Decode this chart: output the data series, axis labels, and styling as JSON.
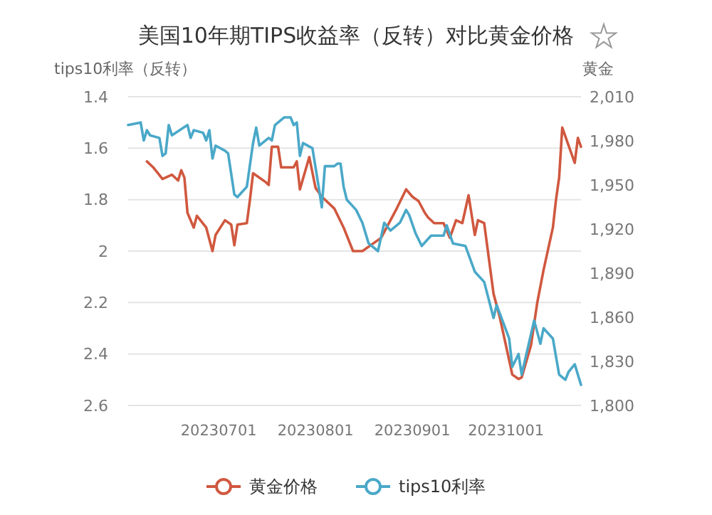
{
  "chart_data": {
    "type": "line",
    "title": "美国10年期TIPS收益率（反转）对比黄金价格",
    "ylabel": "tips10利率（反转）",
    "y2label": "黄金",
    "xlim": [
      "2023-06-02",
      "2023-10-25"
    ],
    "xticks": [
      {
        "value": "2023-07-01",
        "label": "20230701"
      },
      {
        "value": "2023-08-01",
        "label": "20230801"
      },
      {
        "value": "2023-09-01",
        "label": "20230901"
      },
      {
        "value": "2023-10-01",
        "label": "20231001"
      }
    ],
    "ylim": [
      2.6,
      1.4
    ],
    "yticks": [
      1.4,
      1.6,
      1.8,
      2,
      2.2,
      2.4,
      2.6
    ],
    "y2lim": [
      1800,
      2010
    ],
    "y2ticks": [
      {
        "value": 1800,
        "label": "1,800"
      },
      {
        "value": 1830,
        "label": "1,830"
      },
      {
        "value": 1860,
        "label": "1,860"
      },
      {
        "value": 1890,
        "label": "1,890"
      },
      {
        "value": 1920,
        "label": "1,920"
      },
      {
        "value": 1950,
        "label": "1,950"
      },
      {
        "value": 1980,
        "label": "1,980"
      },
      {
        "value": 2010,
        "label": "2,010"
      }
    ],
    "grid": "y",
    "legend": "bottom",
    "series": [
      {
        "name": "黄金价格",
        "color": "#d0583f",
        "axis": "y2",
        "x": [
          "2023-06-08",
          "2023-06-10",
          "2023-06-13",
          "2023-06-16",
          "2023-06-18",
          "2023-06-19",
          "2023-06-20",
          "2023-06-21",
          "2023-06-23",
          "2023-06-24",
          "2023-06-27",
          "2023-06-29",
          "2023-06-30",
          "2023-07-03",
          "2023-07-05",
          "2023-07-06",
          "2023-07-07",
          "2023-07-10",
          "2023-07-11",
          "2023-07-12",
          "2023-07-16",
          "2023-07-17",
          "2023-07-18",
          "2023-07-20",
          "2023-07-21",
          "2023-07-25",
          "2023-07-26",
          "2023-07-27",
          "2023-07-30",
          "2023-08-01",
          "2023-08-03",
          "2023-08-07",
          "2023-08-10",
          "2023-08-13",
          "2023-08-16",
          "2023-08-22",
          "2023-08-27",
          "2023-08-30",
          "2023-09-01",
          "2023-09-03",
          "2023-09-05",
          "2023-09-06",
          "2023-09-08",
          "2023-09-11",
          "2023-09-13",
          "2023-09-15",
          "2023-09-17",
          "2023-09-19",
          "2023-09-21",
          "2023-09-22",
          "2023-09-24",
          "2023-09-27",
          "2023-09-29",
          "2023-10-03",
          "2023-10-05",
          "2023-10-06",
          "2023-10-09",
          "2023-10-11",
          "2023-10-13",
          "2023-10-16",
          "2023-10-17",
          "2023-10-18",
          "2023-10-19",
          "2023-10-23",
          "2023-10-24",
          "2023-10-25"
        ],
        "values": [
          1966,
          1962,
          1954,
          1957,
          1953,
          1960,
          1955,
          1931,
          1921,
          1929,
          1921,
          1905,
          1916,
          1926,
          1923,
          1909,
          1923,
          1924,
          1940,
          1958,
          1952,
          1950,
          1976,
          1976,
          1962,
          1962,
          1966,
          1947,
          1969,
          1948,
          1942,
          1934,
          1921,
          1905,
          1905,
          1914,
          1934,
          1947,
          1942,
          1939,
          1931,
          1928,
          1924,
          1924,
          1914,
          1926,
          1924,
          1943,
          1916,
          1926,
          1924,
          1876,
          1860,
          1821,
          1818,
          1819,
          1841,
          1870,
          1892,
          1921,
          1940,
          1955,
          1989,
          1965,
          1982,
          1976
        ]
      },
      {
        "name": "tips10利率",
        "color": "#4aa8c8",
        "x": [
          "2023-06-02",
          "2023-06-06",
          "2023-06-07",
          "2023-06-08",
          "2023-06-09",
          "2023-06-12",
          "2023-06-13",
          "2023-06-14",
          "2023-06-15",
          "2023-06-16",
          "2023-06-21",
          "2023-06-22",
          "2023-06-23",
          "2023-06-26",
          "2023-06-27",
          "2023-06-28",
          "2023-06-29",
          "2023-06-30",
          "2023-07-03",
          "2023-07-04",
          "2023-07-06",
          "2023-07-07",
          "2023-07-10",
          "2023-07-12",
          "2023-07-13",
          "2023-07-14",
          "2023-07-17",
          "2023-07-18",
          "2023-07-19",
          "2023-07-22",
          "2023-07-24",
          "2023-07-25",
          "2023-07-26",
          "2023-07-27",
          "2023-07-28",
          "2023-07-31",
          "2023-08-02",
          "2023-08-03",
          "2023-08-04",
          "2023-08-07",
          "2023-08-08",
          "2023-08-09",
          "2023-08-10",
          "2023-08-11",
          "2023-08-14",
          "2023-08-16",
          "2023-08-18",
          "2023-08-21",
          "2023-08-23",
          "2023-08-25",
          "2023-08-28",
          "2023-08-30",
          "2023-08-31",
          "2023-09-02",
          "2023-09-04",
          "2023-09-07",
          "2023-09-11",
          "2023-09-12",
          "2023-09-14",
          "2023-09-18",
          "2023-09-21",
          "2023-09-24",
          "2023-09-27",
          "2023-09-28",
          "2023-10-02",
          "2023-10-03",
          "2023-10-05",
          "2023-10-06",
          "2023-10-10",
          "2023-10-12",
          "2023-10-13",
          "2023-10-16",
          "2023-10-18",
          "2023-10-20",
          "2023-10-21",
          "2023-10-23",
          "2023-10-25"
        ],
        "values": [
          1.51,
          1.5,
          1.57,
          1.53,
          1.55,
          1.56,
          1.63,
          1.62,
          1.51,
          1.55,
          1.51,
          1.56,
          1.53,
          1.54,
          1.57,
          1.53,
          1.64,
          1.59,
          1.61,
          1.62,
          1.78,
          1.79,
          1.75,
          1.58,
          1.52,
          1.59,
          1.56,
          1.57,
          1.51,
          1.48,
          1.48,
          1.51,
          1.5,
          1.63,
          1.58,
          1.6,
          1.75,
          1.83,
          1.67,
          1.67,
          1.66,
          1.66,
          1.75,
          1.8,
          1.84,
          1.89,
          1.97,
          2.0,
          1.89,
          1.92,
          1.89,
          1.84,
          1.86,
          1.93,
          1.98,
          1.94,
          1.94,
          1.9,
          1.97,
          1.98,
          2.08,
          2.12,
          2.26,
          2.21,
          2.34,
          2.45,
          2.4,
          2.48,
          2.27,
          2.36,
          2.3,
          2.34,
          2.48,
          2.5,
          2.47,
          2.44,
          2.52
        ]
      }
    ]
  }
}
